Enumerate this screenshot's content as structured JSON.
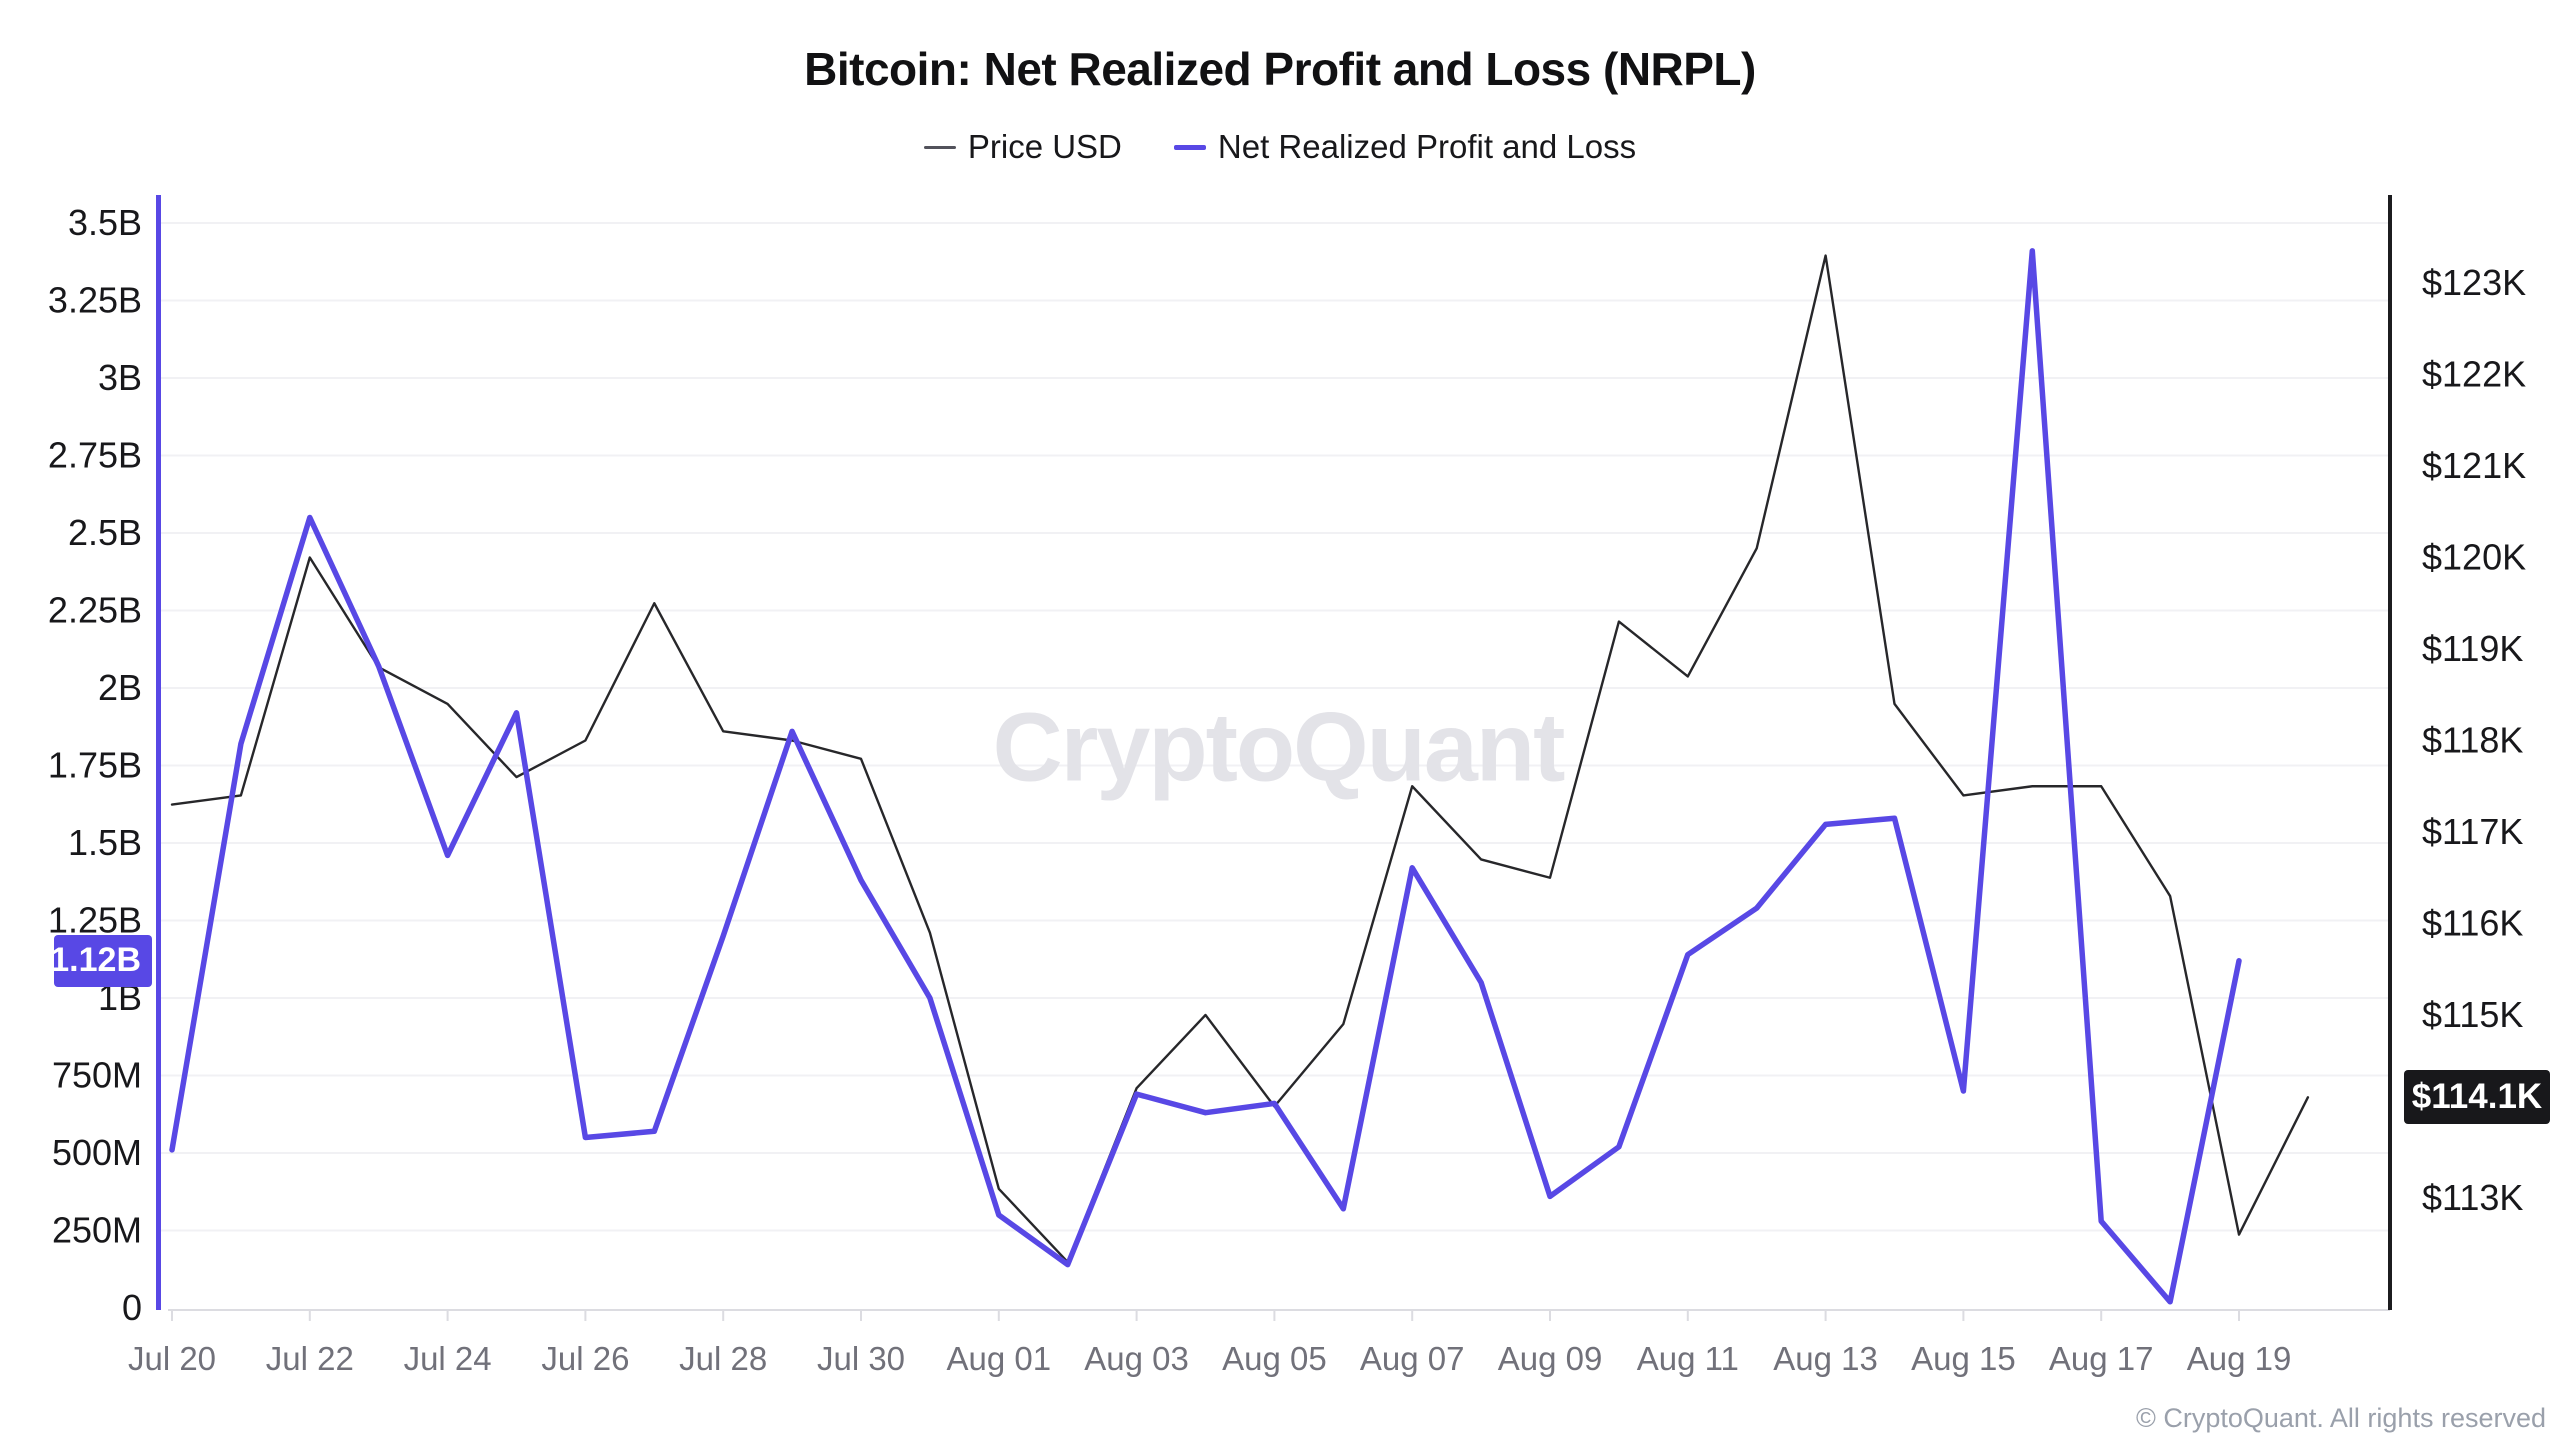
{
  "chart_data": {
    "type": "line",
    "title": "Bitcoin: Net Realized Profit and Loss (NRPL)",
    "watermark": "CryptoQuant",
    "footer": "© CryptoQuant. All rights reserved",
    "grid": true,
    "legend_position": "top",
    "legend": [
      {
        "label": "Price USD",
        "color": "#52525b"
      },
      {
        "label": "Net Realized Profit and Loss",
        "color": "#5848e5"
      }
    ],
    "categories": [
      "Jul 20",
      "Jul 21",
      "Jul 22",
      "Jul 23",
      "Jul 24",
      "Jul 25",
      "Jul 26",
      "Jul 27",
      "Jul 28",
      "Jul 29",
      "Jul 30",
      "Jul 31",
      "Aug 01",
      "Aug 02",
      "Aug 03",
      "Aug 04",
      "Aug 05",
      "Aug 06",
      "Aug 07",
      "Aug 08",
      "Aug 09",
      "Aug 10",
      "Aug 11",
      "Aug 12",
      "Aug 13",
      "Aug 14",
      "Aug 15",
      "Aug 16",
      "Aug 17",
      "Aug 18",
      "Aug 19",
      "Aug 20"
    ],
    "x_tick_labels": [
      "Jul 20",
      "Jul 22",
      "Jul 24",
      "Jul 26",
      "Jul 28",
      "Jul 30",
      "Aug 01",
      "Aug 03",
      "Aug 05",
      "Aug 07",
      "Aug 09",
      "Aug 11",
      "Aug 13",
      "Aug 15",
      "Aug 17",
      "Aug 19"
    ],
    "x_tick_day_indices": [
      0,
      2,
      4,
      6,
      8,
      10,
      12,
      14,
      16,
      18,
      20,
      22,
      24,
      26,
      28,
      30
    ],
    "left_axis": {
      "unit": "USD billions (NRPL)",
      "min": 0,
      "max": 3.5,
      "step": 0.25,
      "tick_labels": [
        "0",
        "250M",
        "500M",
        "750M",
        "1B",
        "1.25B",
        "1.5B",
        "1.75B",
        "2B",
        "2.25B",
        "2.5B",
        "2.75B",
        "3B",
        "3.25B",
        "3.5B"
      ],
      "axis_color": "#5848e5",
      "badge": {
        "label": "1.12B",
        "value": 1.12,
        "color": "#5848e5"
      }
    },
    "right_axis": {
      "unit": "USD thousands (price)",
      "min": 113,
      "max": 123,
      "step": 1,
      "tick_labels": [
        "$113K",
        "$114K",
        "$115K",
        "$116K",
        "$117K",
        "$118K",
        "$119K",
        "$120K",
        "$121K",
        "$122K",
        "$123K"
      ],
      "axis_color": "#1c1c1f",
      "badge": {
        "label": "$114.1K",
        "value": 114.1,
        "color": "#18181b"
      }
    },
    "series": [
      {
        "name": "Price USD",
        "axis": "right",
        "color": "#27272a",
        "stroke_width": 2.4,
        "values": [
          117.3,
          117.4,
          120.0,
          118.8,
          118.4,
          117.6,
          118.0,
          119.5,
          118.1,
          118.0,
          117.8,
          115.9,
          113.1,
          112.3,
          114.2,
          115.0,
          114.0,
          114.9,
          117.5,
          116.7,
          116.5,
          119.3,
          118.7,
          120.1,
          123.3,
          118.4,
          117.4,
          117.5,
          117.5,
          116.3,
          112.6,
          114.1
        ]
      },
      {
        "name": "Net Realized Profit and Loss",
        "axis": "left",
        "color": "#5848e5",
        "stroke_width": 5.5,
        "values": [
          0.51,
          1.82,
          2.55,
          2.07,
          1.46,
          1.92,
          0.55,
          0.57,
          1.2,
          1.86,
          1.38,
          1.0,
          0.3,
          0.14,
          0.69,
          0.63,
          0.66,
          0.32,
          1.42,
          1.05,
          0.36,
          0.52,
          1.14,
          1.29,
          1.56,
          1.58,
          0.7,
          3.41,
          0.28,
          0.02,
          1.12,
          null
        ]
      }
    ]
  }
}
